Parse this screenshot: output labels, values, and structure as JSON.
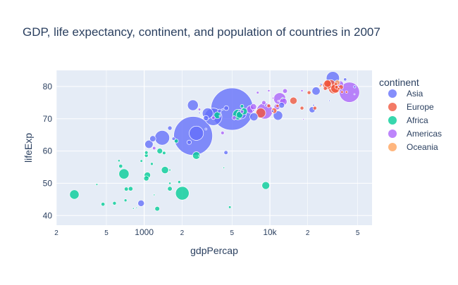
{
  "chart_data": {
    "type": "scatter",
    "title": "GDP, life expectancy, continent, and population of countries in 2007",
    "xlabel": "gdpPercap",
    "ylabel": "lifeExp",
    "x_scale": "log",
    "xlim": [
      200,
      65000
    ],
    "ylim": [
      37,
      85
    ],
    "x_ticks": [
      {
        "value": 200,
        "label": "2",
        "major": false
      },
      {
        "value": 500,
        "label": "5",
        "major": false
      },
      {
        "value": 1000,
        "label": "1000",
        "major": true
      },
      {
        "value": 2000,
        "label": "2",
        "major": false
      },
      {
        "value": 5000,
        "label": "5",
        "major": false
      },
      {
        "value": 10000,
        "label": "10k",
        "major": true
      },
      {
        "value": 20000,
        "label": "2",
        "major": false
      },
      {
        "value": 50000,
        "label": "5",
        "major": false
      }
    ],
    "y_ticks": [
      {
        "value": 40,
        "label": "40"
      },
      {
        "value": 50,
        "label": "50"
      },
      {
        "value": 60,
        "label": "60"
      },
      {
        "value": 70,
        "label": "70"
      },
      {
        "value": 80,
        "label": "80"
      }
    ],
    "size_field": "population",
    "legend": {
      "title": "continent",
      "placement": "right"
    },
    "grid": true,
    "series": [
      {
        "name": "Asia",
        "color": "#636efa",
        "points": [
          {
            "x": 5000,
            "y": 73,
            "size": 1318
          },
          {
            "x": 2450,
            "y": 64.7,
            "size": 1110
          },
          {
            "x": 3540,
            "y": 70.6,
            "size": 224
          },
          {
            "x": 2600,
            "y": 65.5,
            "size": 150
          },
          {
            "x": 1390,
            "y": 64.1,
            "size": 160
          },
          {
            "x": 3200,
            "y": 71.7,
            "size": 85
          },
          {
            "x": 31700,
            "y": 82.6,
            "size": 127
          },
          {
            "x": 2440,
            "y": 74.2,
            "size": 85
          },
          {
            "x": 11600,
            "y": 71,
            "size": 65
          },
          {
            "x": 5940,
            "y": 71.4,
            "size": 65
          },
          {
            "x": 7460,
            "y": 70.6,
            "size": 48
          },
          {
            "x": 4470,
            "y": 59.5,
            "size": 12
          },
          {
            "x": 1091,
            "y": 62.1,
            "size": 50
          },
          {
            "x": 3100,
            "y": 70.2,
            "size": 20
          },
          {
            "x": 944,
            "y": 43.8,
            "size": 31
          },
          {
            "x": 1600,
            "y": 67.1,
            "size": 14
          },
          {
            "x": 23300,
            "y": 78.6,
            "size": 49
          },
          {
            "x": 12400,
            "y": 74.2,
            "size": 25
          },
          {
            "x": 21700,
            "y": 72.8,
            "size": 27
          },
          {
            "x": 1713,
            "y": 63.8,
            "size": 8
          },
          {
            "x": 1170,
            "y": 63.8,
            "size": 28
          },
          {
            "x": 2280,
            "y": 62.7,
            "size": 14
          },
          {
            "x": 47300,
            "y": 79.9,
            "size": 4
          },
          {
            "x": 47100,
            "y": 77.6,
            "size": 1
          },
          {
            "x": 39700,
            "y": 82.2,
            "size": 7
          },
          {
            "x": 25500,
            "y": 80.5,
            "size": 6
          },
          {
            "x": 22300,
            "y": 74.2,
            "size": 2.5
          },
          {
            "x": 29800,
            "y": 75.6,
            "size": 1
          },
          {
            "x": 9250,
            "y": 74.2,
            "size": 3
          },
          {
            "x": 10500,
            "y": 72.4,
            "size": 4
          },
          {
            "x": 3970,
            "y": 72.4,
            "size": 10
          },
          {
            "x": 3100,
            "y": 66.8,
            "size": 3
          },
          {
            "x": 2750,
            "y": 71.8,
            "size": 2
          },
          {
            "x": 4200,
            "y": 72.9,
            "size": 2
          },
          {
            "x": 4500,
            "y": 73.3,
            "size": 17
          }
        ]
      },
      {
        "name": "Europe",
        "color": "#ef553b",
        "points": [
          {
            "x": 32200,
            "y": 79.4,
            "size": 82
          },
          {
            "x": 30500,
            "y": 80.7,
            "size": 61
          },
          {
            "x": 33200,
            "y": 79.4,
            "size": 60
          },
          {
            "x": 28600,
            "y": 80.5,
            "size": 58
          },
          {
            "x": 8460,
            "y": 71.8,
            "size": 71
          },
          {
            "x": 28800,
            "y": 80.9,
            "size": 40
          },
          {
            "x": 15400,
            "y": 75.6,
            "size": 38
          },
          {
            "x": 10800,
            "y": 72.5,
            "size": 22
          },
          {
            "x": 36800,
            "y": 79.8,
            "size": 16
          },
          {
            "x": 27600,
            "y": 79.4,
            "size": 11
          },
          {
            "x": 20500,
            "y": 78.1,
            "size": 10
          },
          {
            "x": 22800,
            "y": 73.3,
            "size": 10
          },
          {
            "x": 18000,
            "y": 73.3,
            "size": 10
          },
          {
            "x": 9800,
            "y": 74.0,
            "size": 10
          },
          {
            "x": 33900,
            "y": 79.8,
            "size": 9
          },
          {
            "x": 11500,
            "y": 74.0,
            "size": 7
          },
          {
            "x": 33500,
            "y": 80.8,
            "size": 8
          },
          {
            "x": 37500,
            "y": 78.3,
            "size": 5
          },
          {
            "x": 35300,
            "y": 79.3,
            "size": 5
          },
          {
            "x": 40700,
            "y": 78.3,
            "size": 4
          }
        ]
      },
      {
        "name": "Africa",
        "color": "#00cc96",
        "points": [
          {
            "x": 2010,
            "y": 46.9,
            "size": 135
          },
          {
            "x": 690,
            "y": 52.9,
            "size": 76
          },
          {
            "x": 278,
            "y": 46.5,
            "size": 65
          },
          {
            "x": 5580,
            "y": 71.3,
            "size": 80
          },
          {
            "x": 9270,
            "y": 49.3,
            "size": 44
          },
          {
            "x": 1463,
            "y": 54.1,
            "size": 38
          },
          {
            "x": 2600,
            "y": 58.6,
            "size": 42
          },
          {
            "x": 1060,
            "y": 52.5,
            "size": 29
          },
          {
            "x": 5730,
            "y": 71.2,
            "size": 33
          },
          {
            "x": 3820,
            "y": 71.1,
            "size": 33
          },
          {
            "x": 6220,
            "y": 72.3,
            "size": 33
          },
          {
            "x": 1330,
            "y": 60,
            "size": 23
          },
          {
            "x": 1040,
            "y": 51.5,
            "size": 19
          },
          {
            "x": 1270,
            "y": 42.1,
            "size": 17
          },
          {
            "x": 1600,
            "y": 48.3,
            "size": 16
          },
          {
            "x": 780,
            "y": 48.3,
            "size": 15
          },
          {
            "x": 470,
            "y": 43.5,
            "size": 11
          },
          {
            "x": 650,
            "y": 55.3,
            "size": 11
          },
          {
            "x": 1040,
            "y": 59.5,
            "size": 9
          },
          {
            "x": 6000,
            "y": 73.9,
            "size": 9
          },
          {
            "x": 1800,
            "y": 63.1,
            "size": 12
          },
          {
            "x": 720,
            "y": 48.2,
            "size": 12
          },
          {
            "x": 1040,
            "y": 58.6,
            "size": 10
          },
          {
            "x": 580,
            "y": 43.8,
            "size": 10
          },
          {
            "x": 4800,
            "y": 42.6,
            "size": 5
          },
          {
            "x": 950,
            "y": 56.9,
            "size": 5
          },
          {
            "x": 1600,
            "y": 50,
            "size": 4
          },
          {
            "x": 710,
            "y": 44.7,
            "size": 6
          },
          {
            "x": 1150,
            "y": 56,
            "size": 6
          },
          {
            "x": 2750,
            "y": 58.5,
            "size": 2
          },
          {
            "x": 12600,
            "y": 76.4,
            "size": 1
          },
          {
            "x": 420,
            "y": 49.6,
            "size": 3
          },
          {
            "x": 1900,
            "y": 50.4,
            "size": 6
          },
          {
            "x": 820,
            "y": 42.2,
            "size": 2
          },
          {
            "x": 4300,
            "y": 54.8,
            "size": 2
          },
          {
            "x": 630,
            "y": 57.0,
            "size": 4
          },
          {
            "x": 870,
            "y": 42.4,
            "size": 1.5
          },
          {
            "x": 1200,
            "y": 46.4,
            "size": 2
          },
          {
            "x": 1600,
            "y": 54.1,
            "size": 3
          },
          {
            "x": 1440,
            "y": 59.4,
            "size": 8
          }
        ]
      },
      {
        "name": "Americas",
        "color": "#ab63fa",
        "points": [
          {
            "x": 42950,
            "y": 78.2,
            "size": 301
          },
          {
            "x": 9070,
            "y": 72.4,
            "size": 190
          },
          {
            "x": 11980,
            "y": 76.2,
            "size": 108
          },
          {
            "x": 7000,
            "y": 72.9,
            "size": 44
          },
          {
            "x": 12800,
            "y": 75.3,
            "size": 40
          },
          {
            "x": 36300,
            "y": 80.7,
            "size": 33
          },
          {
            "x": 7400,
            "y": 73.7,
            "size": 28
          },
          {
            "x": 11400,
            "y": 73.7,
            "size": 26
          },
          {
            "x": 13200,
            "y": 78.6,
            "size": 16
          },
          {
            "x": 8950,
            "y": 75,
            "size": 13
          },
          {
            "x": 5200,
            "y": 70.3,
            "size": 12
          },
          {
            "x": 4200,
            "y": 65.6,
            "size": 9
          },
          {
            "x": 3550,
            "y": 70.3,
            "size": 9
          },
          {
            "x": 6000,
            "y": 72.2,
            "size": 9
          },
          {
            "x": 1200,
            "y": 60.9,
            "size": 8
          },
          {
            "x": 8000,
            "y": 78.1,
            "size": 5
          },
          {
            "x": 9800,
            "y": 78.7,
            "size": 4
          },
          {
            "x": 2750,
            "y": 72.9,
            "size": 5
          },
          {
            "x": 18000,
            "y": 78.7,
            "size": 4
          },
          {
            "x": 7400,
            "y": 72.6,
            "size": 3
          },
          {
            "x": 10600,
            "y": 76.4,
            "size": 3
          },
          {
            "x": 4000,
            "y": 70.9,
            "size": 2
          },
          {
            "x": 11700,
            "y": 75.5,
            "size": 2
          },
          {
            "x": 18500,
            "y": 69.8,
            "size": 1.5
          }
        ]
      },
      {
        "name": "Oceania",
        "color": "#ffa15a",
        "points": [
          {
            "x": 34400,
            "y": 81.2,
            "size": 20
          },
          {
            "x": 25200,
            "y": 80.2,
            "size": 4
          }
        ]
      }
    ]
  }
}
